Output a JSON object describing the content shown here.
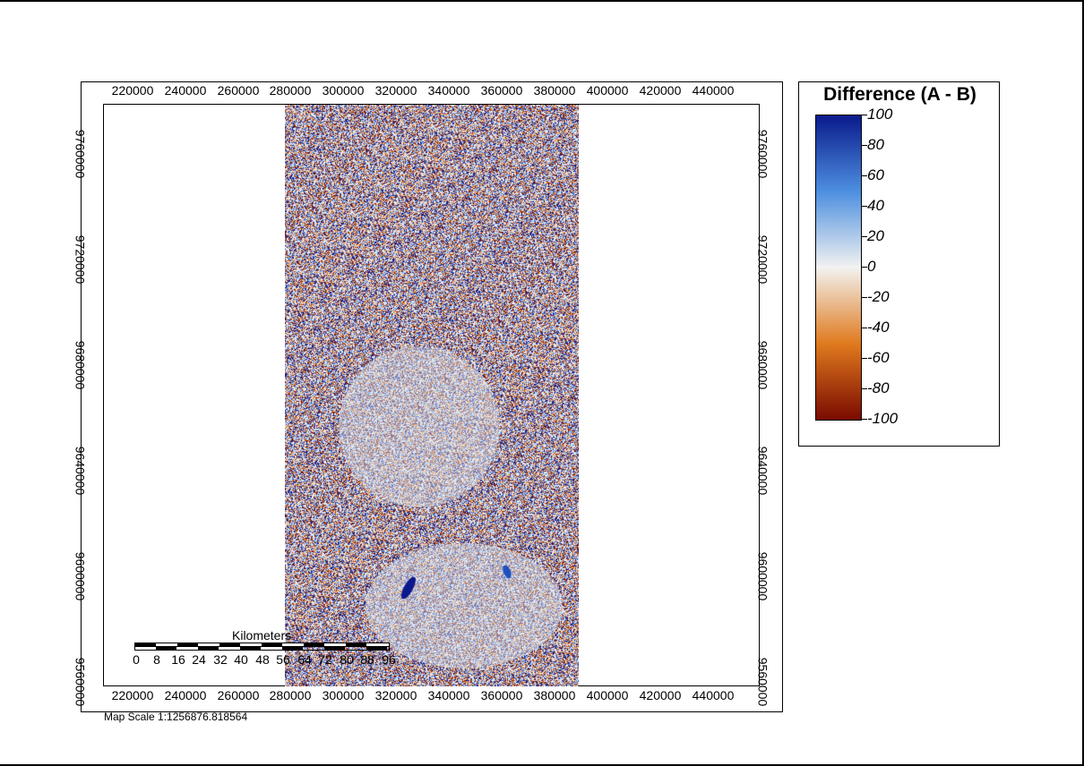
{
  "x_ticks": [
    "220000",
    "240000",
    "260000",
    "280000",
    "300000",
    "320000",
    "340000",
    "360000",
    "380000",
    "400000",
    "420000",
    "440000"
  ],
  "y_ticks": [
    "9760000",
    "9720000",
    "9680000",
    "9640000",
    "9600000",
    "9560000"
  ],
  "legend": {
    "title": "Difference (A - B)",
    "labels": [
      "100",
      "80",
      "60",
      "40",
      "20",
      "0",
      "-20",
      "-40",
      "-60",
      "-80",
      "-100"
    ]
  },
  "scalebar": {
    "title": "Kilometers",
    "labels": [
      "0",
      "8",
      "16",
      "24",
      "32",
      "40",
      "48",
      "56",
      "64",
      "72",
      "80",
      "88",
      "96"
    ]
  },
  "map_scale_text": "Map Scale 1:1256876.818564",
  "colors": {
    "high": "#0a1a8c",
    "mid_high": "#4d8fe0",
    "zero": "#f2f2f0",
    "mid_low": "#e07a1e",
    "low": "#7a0a00"
  }
}
